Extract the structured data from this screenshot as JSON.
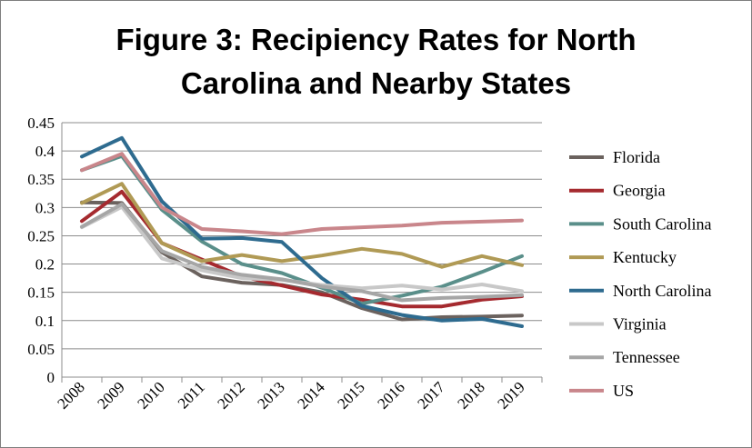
{
  "chart_data": {
    "type": "line",
    "title_line1": "Figure 3: Recipiency Rates for North",
    "title_line2": "Carolina and Nearby States",
    "xlabel": "",
    "ylabel": "",
    "ylim": [
      0,
      0.45
    ],
    "yticks": [
      "0",
      "0.05",
      "0.1",
      "0.15",
      "0.2",
      "0.25",
      "0.3",
      "0.35",
      "0.4",
      "0.45"
    ],
    "x": [
      "2008",
      "2009",
      "2010",
      "2011",
      "2012",
      "2013",
      "2014",
      "2015",
      "2016",
      "2017",
      "2018",
      "2019"
    ],
    "grid": true,
    "legend_position": "right",
    "series": [
      {
        "name": "Florida",
        "color": "#6b625e",
        "values": [
          0.309,
          0.308,
          0.221,
          0.178,
          0.167,
          0.163,
          0.15,
          0.122,
          0.102,
          0.106,
          0.107,
          0.109
        ]
      },
      {
        "name": "Georgia",
        "color": "#a52a2f",
        "values": [
          0.276,
          0.328,
          0.237,
          0.208,
          0.178,
          0.162,
          0.146,
          0.137,
          0.125,
          0.125,
          0.137,
          0.143
        ]
      },
      {
        "name": "South Carolina",
        "color": "#5a8f8a",
        "values": [
          0.366,
          0.391,
          0.296,
          0.24,
          0.2,
          0.184,
          0.158,
          0.13,
          0.144,
          0.16,
          0.186,
          0.214
        ]
      },
      {
        "name": "Kentucky",
        "color": "#b09a55",
        "values": [
          0.308,
          0.342,
          0.237,
          0.205,
          0.216,
          0.205,
          0.215,
          0.227,
          0.218,
          0.195,
          0.214,
          0.198
        ]
      },
      {
        "name": "North Carolina",
        "color": "#2e6b8f",
        "values": [
          0.39,
          0.423,
          0.311,
          0.245,
          0.246,
          0.239,
          0.175,
          0.126,
          0.11,
          0.1,
          0.103,
          0.09
        ]
      },
      {
        "name": "Virginia",
        "color": "#c8c8c8",
        "values": [
          0.265,
          0.301,
          0.21,
          0.189,
          0.175,
          0.172,
          0.163,
          0.157,
          0.162,
          0.155,
          0.164,
          0.152
        ]
      },
      {
        "name": "Tennessee",
        "color": "#a6a6a6",
        "values": [
          0.266,
          0.306,
          0.223,
          0.195,
          0.181,
          0.173,
          0.16,
          0.152,
          0.136,
          0.14,
          0.142,
          0.145
        ]
      },
      {
        "name": "US",
        "color": "#c9868b",
        "values": [
          0.366,
          0.395,
          0.3,
          0.262,
          0.258,
          0.253,
          0.262,
          0.265,
          0.268,
          0.273,
          0.275,
          0.277
        ]
      }
    ]
  }
}
